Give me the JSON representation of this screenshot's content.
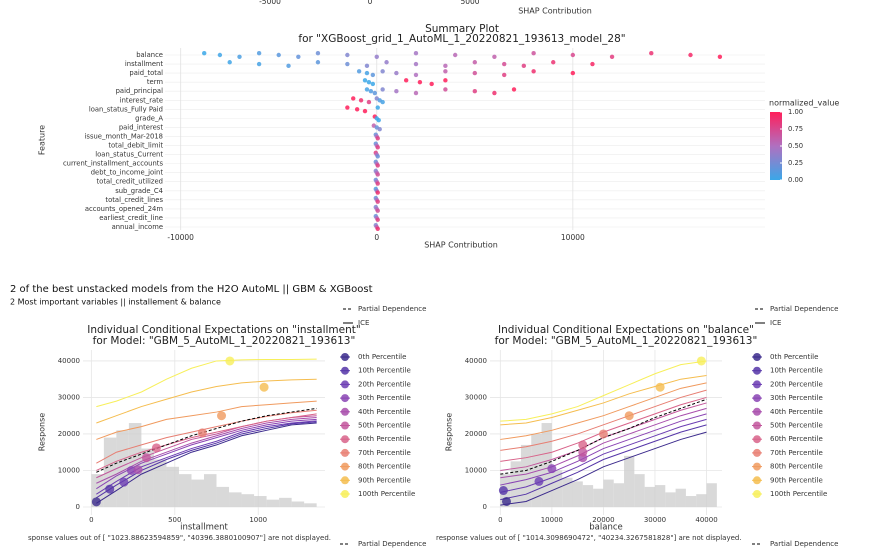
{
  "heading": "2 of the best unstacked models from the H2O AutoML || GBM & XGBoost",
  "subheading": "2 Most important variables || installement & balance",
  "chart_data": [
    {
      "type": "axis",
      "xlabel": "SHAP Contribution",
      "xlim": [
        -10000,
        19500
      ],
      "xticks": [
        -5000,
        0,
        5000
      ]
    },
    {
      "type": "beeswarm",
      "title": "Summary Plot",
      "subtitle": "for \"XGBoost_grid_1_AutoML_1_20220821_193613_model_28\"",
      "xlabel": "SHAP Contribution",
      "ylabel": "Feature",
      "xlim": [
        -10800,
        19800
      ],
      "xticks": [
        -10000,
        0,
        10000
      ],
      "legend_title": "normalized_value",
      "clim": [
        0,
        1
      ],
      "colors": [
        "#3aa7e8",
        "#b070c0",
        "#ff1f5b"
      ],
      "cticks": [
        {
          "value": 0,
          "label": "0.00"
        },
        {
          "value": 0.25,
          "label": "0.25"
        },
        {
          "value": 0.5,
          "label": "0.50"
        },
        {
          "value": 0.75,
          "label": "0.75"
        },
        {
          "value": 1,
          "label": "1.00"
        }
      ],
      "rows": [
        {
          "feature": "balance",
          "values": [
            -8800,
            -8000,
            -7000,
            -6000,
            -5000,
            -4000,
            -3000,
            -1500,
            0,
            2000,
            4000,
            6000,
            8000,
            10000,
            12000,
            14000,
            16000,
            17500
          ],
          "normalized_value": [
            0,
            0.03,
            0.07,
            0.1,
            0.14,
            0.18,
            0.22,
            0.3,
            0.38,
            0.45,
            0.55,
            0.6,
            0.68,
            0.75,
            0.82,
            0.88,
            0.94,
            1
          ]
        },
        {
          "feature": "installment",
          "values": [
            -7500,
            -6000,
            -4500,
            -3000,
            -1500,
            -500,
            500,
            2000,
            3500,
            5000,
            6500,
            7500,
            9000,
            11000
          ],
          "normalized_value": [
            0.02,
            0.05,
            0.1,
            0.15,
            0.22,
            0.3,
            0.38,
            0.45,
            0.55,
            0.62,
            0.72,
            0.8,
            0.88,
            0.95
          ]
        },
        {
          "feature": "paid_total",
          "values": [
            -900,
            -500,
            -200,
            300,
            1000,
            2000,
            3500,
            5000,
            6500,
            8000,
            10000
          ],
          "normalized_value": [
            0.1,
            0.05,
            0.15,
            0.3,
            0.4,
            0.5,
            0.6,
            0.7,
            0.8,
            0.9,
            1
          ]
        },
        {
          "feature": "term",
          "values": [
            -600,
            -400,
            -200,
            1500,
            2200,
            2800,
            3500
          ],
          "normalized_value": [
            0,
            0,
            0,
            1,
            1,
            1,
            1
          ]
        },
        {
          "feature": "paid_principal",
          "values": [
            -500,
            -300,
            -100,
            300,
            1000,
            2000,
            3500,
            5000,
            6000,
            7000
          ],
          "normalized_value": [
            0.05,
            0.1,
            0.15,
            0.3,
            0.45,
            0.55,
            0.7,
            0.8,
            0.9,
            1
          ]
        },
        {
          "feature": "interest_rate",
          "values": [
            -1200,
            -800,
            -400,
            0,
            150,
            300
          ],
          "normalized_value": [
            1,
            0.9,
            0.8,
            0.3,
            0.1,
            0.05
          ]
        },
        {
          "feature": "loan_status_Fully Paid",
          "values": [
            -1500,
            -1000,
            -600,
            50
          ],
          "normalized_value": [
            1,
            1,
            1,
            0
          ]
        },
        {
          "feature": "grade_A",
          "values": [
            -100,
            0,
            100
          ],
          "normalized_value": [
            1,
            0,
            0
          ]
        },
        {
          "feature": "paid_interest",
          "values": [
            -150,
            0,
            150
          ],
          "normalized_value": [
            0.6,
            0.2,
            0.3
          ]
        },
        {
          "feature": "issue_month_Mar-2018",
          "values": [
            -50,
            0,
            50
          ],
          "normalized_value": [
            0.2,
            0.5,
            0.8
          ]
        },
        {
          "feature": "total_debit_limit",
          "values": [
            -50,
            0,
            50
          ],
          "normalized_value": [
            0.2,
            0.5,
            0.8
          ]
        },
        {
          "feature": "loan_status_Current",
          "values": [
            -50,
            0,
            50
          ],
          "normalized_value": [
            0.8,
            0.5,
            0.2
          ]
        },
        {
          "feature": "current_installment_accounts",
          "values": [
            -50,
            0,
            50
          ],
          "normalized_value": [
            0.2,
            0.5,
            0.8
          ]
        },
        {
          "feature": "debt_to_income_joint",
          "values": [
            -50,
            0,
            50
          ],
          "normalized_value": [
            0.3,
            0.5,
            0.7
          ]
        },
        {
          "feature": "total_credit_utilized",
          "values": [
            -50,
            0,
            50
          ],
          "normalized_value": [
            0.2,
            0.5,
            0.8
          ]
        },
        {
          "feature": "sub_grade_C4",
          "values": [
            -50,
            0,
            50
          ],
          "normalized_value": [
            0.1,
            0.4,
            0.9
          ]
        },
        {
          "feature": "total_credit_lines",
          "values": [
            -50,
            0,
            50
          ],
          "normalized_value": [
            0.2,
            0.5,
            0.8
          ]
        },
        {
          "feature": "accounts_opened_24m",
          "values": [
            -50,
            0,
            50
          ],
          "normalized_value": [
            0.3,
            0.5,
            0.7
          ]
        },
        {
          "feature": "earliest_credit_line",
          "values": [
            -50,
            0,
            50
          ],
          "normalized_value": [
            0.2,
            0.5,
            0.8
          ]
        },
        {
          "feature": "annual_income",
          "values": [
            -50,
            0,
            50
          ],
          "normalized_value": [
            0.3,
            0.6,
            0.9
          ]
        }
      ]
    },
    {
      "type": "ice",
      "title": "Individual Conditional Expectations on \"installment\"",
      "subtitle": "for Model: \"GBM_5_AutoML_1_20220821_193613\"",
      "xlabel": "installment",
      "ylabel": "Response",
      "xlim": [
        -50,
        1400
      ],
      "ylim": [
        -2200,
        43000
      ],
      "xticks": [
        0,
        500,
        1000
      ],
      "yticks": [
        0,
        10000,
        20000,
        30000,
        40000
      ],
      "grid": true,
      "note": "sponse values out of [ \"1023.88623594859\",  \"40396.3880100907\"] are not displayed.",
      "x": [
        30,
        150,
        300,
        450,
        600,
        750,
        900,
        1050,
        1200,
        1350
      ],
      "ice_name": "ICE",
      "partial_dependence": {
        "name": "Partial Dependence",
        "color": "#000000",
        "values": [
          9500,
          12000,
          14500,
          17000,
          19500,
          21500,
          23500,
          25000,
          26000,
          27000
        ]
      },
      "histogram": {
        "color": "#cfcfcf",
        "bins": [
          0,
          75,
          150,
          225,
          300,
          375,
          450,
          525,
          600,
          675,
          750,
          825,
          900,
          975,
          1050,
          1125,
          1200,
          1275,
          1350
        ],
        "values": [
          9000,
          19000,
          21000,
          23000,
          16000,
          13000,
          11000,
          9000,
          7500,
          9000,
          5500,
          4000,
          3500,
          3000,
          2000,
          2500,
          1500,
          1000
        ]
      },
      "series": [
        {
          "name": "0th Percentile",
          "color": "#3b2a8c",
          "values": [
            1000,
            4500,
            9000,
            12000,
            15000,
            17000,
            19500,
            21000,
            22500,
            23000
          ],
          "point": [
            30,
            1400
          ]
        },
        {
          "name": "10th Percentile",
          "color": "#5535a8",
          "values": [
            2500,
            6000,
            10000,
            13000,
            15500,
            17500,
            20000,
            21500,
            22800,
            23300
          ],
          "point": [
            110,
            4900
          ]
        },
        {
          "name": "20th Percentile",
          "color": "#6c3db3",
          "values": [
            3500,
            7000,
            11000,
            13500,
            16000,
            18000,
            20500,
            22000,
            23000,
            23600
          ],
          "point": [
            195,
            6800
          ]
        },
        {
          "name": "30th Percentile",
          "color": "#8a44b4",
          "values": [
            5000,
            8500,
            12000,
            14500,
            17000,
            19000,
            21000,
            22500,
            23500,
            24000
          ],
          "point": [
            240,
            10000
          ]
        },
        {
          "name": "40th Percentile",
          "color": "#a84eac",
          "values": [
            6500,
            9000,
            12500,
            15000,
            17500,
            19500,
            21500,
            23000,
            24000,
            24500
          ],
          "point": [
            280,
            10200
          ]
        },
        {
          "name": "50th Percentile",
          "color": "#c2569c",
          "values": [
            8000,
            10500,
            13500,
            16000,
            18500,
            20000,
            22000,
            23500,
            24500,
            25000
          ],
          "point": [
            330,
            13500
          ]
        },
        {
          "name": "60th Percentile",
          "color": "#d8638a",
          "values": [
            10000,
            12500,
            15000,
            17000,
            19000,
            20500,
            22000,
            23500,
            24500,
            25500
          ],
          "point": [
            390,
            16200
          ]
        },
        {
          "name": "70th Percentile",
          "color": "#e77e72",
          "values": [
            12000,
            15000,
            17000,
            19000,
            20500,
            22000,
            23500,
            24800,
            25800,
            26500
          ],
          "point": [
            665,
            20300
          ]
        },
        {
          "name": "80th Percentile",
          "color": "#f09a5e",
          "values": [
            18500,
            20500,
            22000,
            24000,
            25000,
            26000,
            27500,
            28000,
            28500,
            29000
          ],
          "point": [
            780,
            25000
          ]
        },
        {
          "name": "90th Percentile",
          "color": "#f5bd4f",
          "values": [
            23000,
            25000,
            27500,
            29500,
            31500,
            33000,
            34000,
            34500,
            34800,
            35000
          ],
          "point": [
            1035,
            32800
          ]
        },
        {
          "name": "100th Percentile",
          "color": "#f7ef5a",
          "values": [
            27500,
            29000,
            31500,
            35000,
            38000,
            40000,
            40300,
            40400,
            40400,
            40500
          ],
          "point": [
            830,
            40000
          ]
        }
      ]
    },
    {
      "type": "ice",
      "title": "Individual Conditional Expectations on \"balance\"",
      "subtitle": "for Model: \"GBM_5_AutoML_1_20220821_193613\"",
      "xlabel": "balance",
      "ylabel": "Response",
      "xlim": [
        -2000,
        43000
      ],
      "ylim": [
        -2200,
        43000
      ],
      "xticks": [
        0,
        10000,
        20000,
        30000,
        40000
      ],
      "yticks": [
        0,
        10000,
        20000,
        30000,
        40000
      ],
      "grid": true,
      "note": "response values out of [ \"1014.3098690472\",  \"40234.3267581828\"] are not displayed.",
      "x": [
        0,
        5000,
        10000,
        15000,
        20000,
        25000,
        30000,
        35000,
        40000
      ],
      "ice_name": "ICE",
      "partial_dependence": {
        "name": "Partial Dependence",
        "color": "#000000",
        "values": [
          9000,
          10000,
          12500,
          15500,
          19000,
          21500,
          24500,
          27000,
          29500
        ]
      },
      "histogram": {
        "color": "#cfcfcf",
        "bins": [
          0,
          2000,
          4000,
          6000,
          8000,
          10000,
          12000,
          14000,
          16000,
          18000,
          20000,
          22000,
          24000,
          26000,
          28000,
          30000,
          32000,
          34000,
          36000,
          38000,
          40000,
          42000
        ],
        "values": [
          9000,
          12500,
          17000,
          20000,
          23000,
          10000,
          8000,
          7000,
          6000,
          5000,
          7500,
          6500,
          14000,
          9000,
          5500,
          6000,
          4000,
          5000,
          3000,
          3500,
          6500
        ]
      },
      "series": [
        {
          "name": "0th Percentile",
          "color": "#3b2a8c",
          "values": [
            500,
            1500,
            4500,
            7500,
            11000,
            13500,
            16000,
            18500,
            20500
          ],
          "point": [
            1200,
            1500
          ]
        },
        {
          "name": "10th Percentile",
          "color": "#5535a8",
          "values": [
            2000,
            3500,
            6500,
            9500,
            13000,
            15500,
            18000,
            20500,
            22500
          ],
          "point": [
            600,
            4500
          ]
        },
        {
          "name": "20th Percentile",
          "color": "#6c3db3",
          "values": [
            4000,
            5500,
            8000,
            11000,
            14500,
            17000,
            19500,
            22000,
            24000
          ],
          "point": [
            7500,
            7000
          ]
        },
        {
          "name": "30th Percentile",
          "color": "#8a44b4",
          "values": [
            6000,
            7500,
            9500,
            12500,
            16000,
            18500,
            21000,
            23500,
            25500
          ],
          "point": [
            10000,
            10500
          ]
        },
        {
          "name": "40th Percentile",
          "color": "#a84eac",
          "values": [
            8000,
            9000,
            11000,
            14000,
            17500,
            20000,
            22500,
            25000,
            27000
          ],
          "point": [
            16000,
            13500
          ]
        },
        {
          "name": "50th Percentile",
          "color": "#c2569c",
          "values": [
            10000,
            11000,
            13000,
            15500,
            19000,
            21500,
            24000,
            26500,
            28500
          ],
          "point": [
            16000,
            15000
          ]
        },
        {
          "name": "60th Percentile",
          "color": "#d8638a",
          "values": [
            12500,
            13500,
            15000,
            17500,
            20500,
            23000,
            25500,
            28000,
            30000
          ],
          "point": [
            16000,
            17000
          ]
        },
        {
          "name": "70th Percentile",
          "color": "#e77e72",
          "values": [
            15500,
            16500,
            18000,
            20000,
            22500,
            25000,
            27500,
            30000,
            32000
          ],
          "point": [
            20000,
            20000
          ]
        },
        {
          "name": "80th Percentile",
          "color": "#f09a5e",
          "values": [
            18500,
            19500,
            21000,
            23000,
            25000,
            27500,
            30000,
            32500,
            34000
          ],
          "point": [
            25000,
            25000
          ]
        },
        {
          "name": "90th Percentile",
          "color": "#f5bd4f",
          "values": [
            22500,
            23000,
            24500,
            26500,
            28500,
            31000,
            33000,
            35000,
            36000
          ],
          "point": [
            31000,
            32800
          ]
        },
        {
          "name": "100th Percentile",
          "color": "#f7ef5a",
          "values": [
            23500,
            24000,
            25500,
            27500,
            30500,
            33500,
            36500,
            39000,
            40000
          ],
          "point": [
            39000,
            40000
          ]
        }
      ]
    }
  ]
}
